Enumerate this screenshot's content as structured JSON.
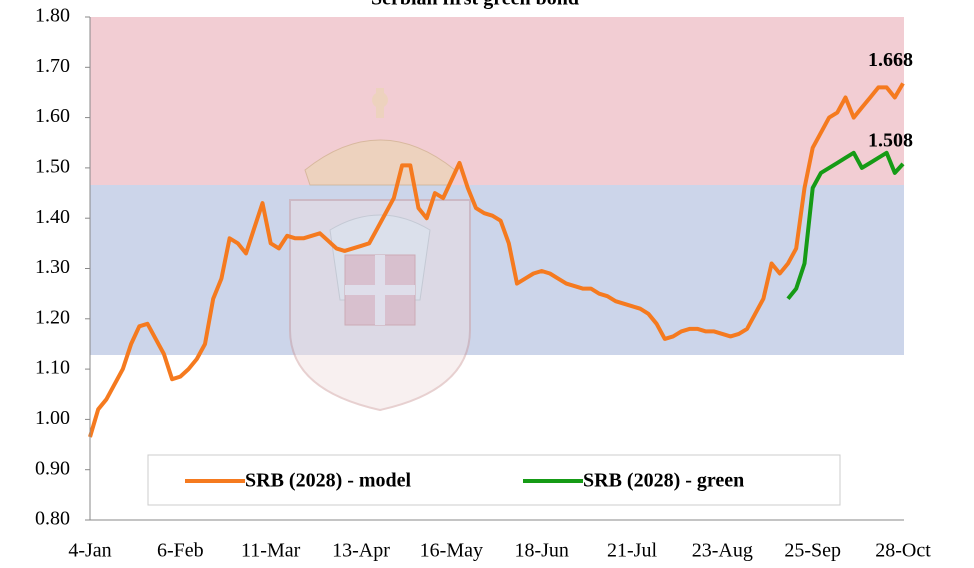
{
  "chart_data": {
    "type": "line",
    "title": "Serbian first green bond",
    "categories": [
      "4-Jan",
      null,
      null,
      null,
      null,
      null,
      null,
      null,
      null,
      null,
      null,
      "6-Feb",
      null,
      null,
      null,
      null,
      null,
      null,
      null,
      null,
      null,
      null,
      "11-Mar",
      null,
      null,
      null,
      null,
      null,
      null,
      null,
      null,
      null,
      null,
      "13-Apr",
      null,
      null,
      null,
      null,
      null,
      null,
      null,
      null,
      null,
      null,
      "16-May",
      null,
      null,
      null,
      null,
      null,
      null,
      null,
      null,
      null,
      null,
      "18-Jun",
      null,
      null,
      null,
      null,
      null,
      null,
      null,
      null,
      null,
      null,
      "21-Jul",
      null,
      null,
      null,
      null,
      null,
      null,
      null,
      null,
      null,
      null,
      "23-Aug",
      null,
      null,
      null,
      null,
      null,
      null,
      null,
      null,
      null,
      null,
      "25-Sep",
      null,
      null,
      null,
      null,
      null,
      null,
      null,
      null,
      null,
      null,
      "28-Oct"
    ],
    "series": [
      {
        "name": "SRB (2028) - model",
        "color": "#f57a1f",
        "values": [
          0.965,
          1.02,
          1.04,
          1.07,
          1.1,
          1.15,
          1.185,
          1.19,
          1.16,
          1.13,
          1.08,
          1.085,
          1.1,
          1.12,
          1.15,
          1.24,
          1.28,
          1.36,
          1.35,
          1.33,
          1.38,
          1.43,
          1.35,
          1.34,
          1.365,
          1.36,
          1.36,
          1.365,
          1.37,
          1.355,
          1.34,
          1.335,
          1.34,
          1.345,
          1.35,
          1.38,
          1.41,
          1.44,
          1.505,
          1.505,
          1.42,
          1.4,
          1.45,
          1.44,
          1.475,
          1.51,
          1.46,
          1.42,
          1.41,
          1.405,
          1.395,
          1.35,
          1.27,
          1.28,
          1.29,
          1.295,
          1.29,
          1.28,
          1.27,
          1.265,
          1.26,
          1.26,
          1.25,
          1.245,
          1.235,
          1.23,
          1.225,
          1.22,
          1.21,
          1.19,
          1.16,
          1.165,
          1.175,
          1.18,
          1.18,
          1.175,
          1.175,
          1.17,
          1.165,
          1.17,
          1.18,
          1.21,
          1.24,
          1.31,
          1.29,
          1.31,
          1.34,
          1.46,
          1.54,
          1.57,
          1.6,
          1.61,
          1.64,
          1.6,
          1.62,
          1.64,
          1.66,
          1.66,
          1.64,
          1.668
        ]
      },
      {
        "name": "SRB (2028) - green",
        "color": "#169b16",
        "values": [
          null,
          null,
          null,
          null,
          null,
          null,
          null,
          null,
          null,
          null,
          null,
          null,
          null,
          null,
          null,
          null,
          null,
          null,
          null,
          null,
          null,
          null,
          null,
          null,
          null,
          null,
          null,
          null,
          null,
          null,
          null,
          null,
          null,
          null,
          null,
          null,
          null,
          null,
          null,
          null,
          null,
          null,
          null,
          null,
          null,
          null,
          null,
          null,
          null,
          null,
          null,
          null,
          null,
          null,
          null,
          null,
          null,
          null,
          null,
          null,
          null,
          null,
          null,
          null,
          null,
          null,
          null,
          null,
          null,
          null,
          null,
          null,
          null,
          null,
          null,
          null,
          null,
          null,
          null,
          null,
          null,
          null,
          null,
          null,
          null,
          1.24,
          1.26,
          1.31,
          1.46,
          1.49,
          1.5,
          1.51,
          1.52,
          1.53,
          1.5,
          1.51,
          1.52,
          1.53,
          1.49,
          1.508
        ]
      }
    ],
    "ylim": [
      0.8,
      1.8
    ],
    "yticks": [
      {
        "value": 0.8,
        "label": "0.80"
      },
      {
        "value": 0.9,
        "label": "0.90"
      },
      {
        "value": 1.0,
        "label": "1.00"
      },
      {
        "value": 1.1,
        "label": "1.10"
      },
      {
        "value": 1.2,
        "label": "1.20"
      },
      {
        "value": 1.3,
        "label": "1.30"
      },
      {
        "value": 1.4,
        "label": "1.40"
      },
      {
        "value": 1.5,
        "label": "1.50"
      },
      {
        "value": 1.6,
        "label": "1.60"
      },
      {
        "value": 1.7,
        "label": "1.70"
      },
      {
        "value": 1.8,
        "label": "1.80"
      }
    ],
    "legend": "bottom"
  }
}
